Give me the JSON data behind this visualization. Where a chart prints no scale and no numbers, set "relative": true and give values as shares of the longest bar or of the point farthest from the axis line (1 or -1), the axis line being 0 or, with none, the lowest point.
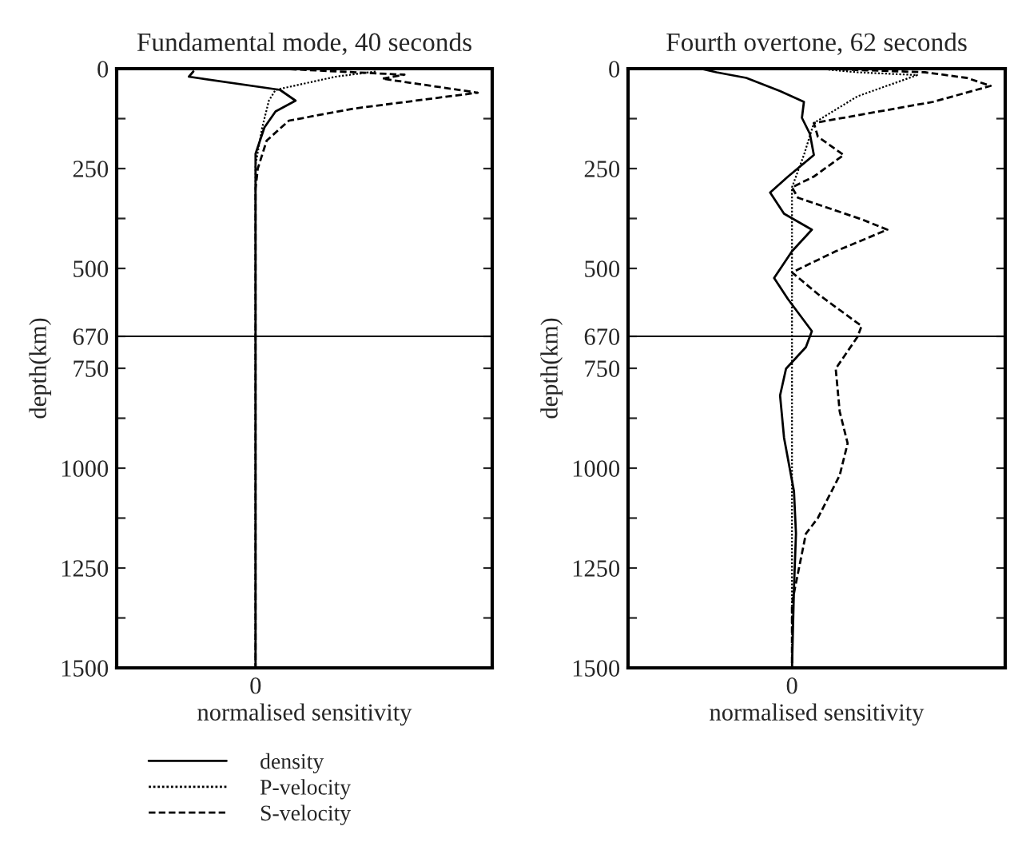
{
  "chart_data": [
    {
      "type": "line",
      "title": "Fundamental mode, 40 seconds",
      "xlabel": "normalised sensitivity",
      "ylabel": "depth(km)",
      "relative": true,
      "orientation": "horizontal",
      "annotations": [
        "0"
      ],
      "ylim": [
        1500,
        0
      ],
      "yticks": [
        0,
        {
          "value": 125,
          "label": null
        },
        250,
        {
          "value": 375,
          "label": null
        },
        500,
        670,
        750,
        {
          "value": 875,
          "label": null
        },
        1000,
        {
          "value": 1125,
          "label": null
        },
        1250,
        {
          "value": 1375,
          "label": null
        },
        1500
      ],
      "legend": "bottom left",
      "ref_lines": [
        {
          "axis": "y",
          "value": 670,
          "color": "#000000"
        }
      ],
      "series": [
        {
          "name": "density",
          "color": "#000000",
          "line_style": "solid",
          "values": [
            -0.28,
            -0.3,
            0.11,
            0.18,
            0.09,
            0.04,
            0.0,
            0.0
          ],
          "x": [
            7,
            20,
            53,
            80,
            107,
            147,
            213,
            1500
          ]
        },
        {
          "name": "P-velocity",
          "color": "#000000",
          "line_style": "dotted",
          "values": [
            0.54,
            0.36,
            0.09,
            0.06,
            0.03,
            0.0,
            0.0
          ],
          "x": [
            7,
            20,
            53,
            80,
            147,
            240,
            1500
          ]
        },
        {
          "name": "S-velocity",
          "color": "#000000",
          "line_style": "dashed",
          "values": [
            0.11,
            0.67,
            0.57,
            1.0,
            0.44,
            0.15,
            0.05,
            0.01,
            0.0,
            0.0
          ],
          "x": [
            0,
            15,
            25,
            60,
            100,
            130,
            180,
            250,
            300,
            1500
          ]
        }
      ]
    },
    {
      "type": "line",
      "title": "Fourth overtone, 62 seconds",
      "xlabel": "normalised sensitivity",
      "ylabel": "depth(km)",
      "relative": true,
      "orientation": "horizontal",
      "annotations": [
        "0"
      ],
      "ylim": [
        1500,
        0
      ],
      "yticks": [
        0,
        {
          "value": 125,
          "label": null
        },
        250,
        {
          "value": 375,
          "label": null
        },
        500,
        670,
        750,
        {
          "value": 875,
          "label": null
        },
        1000,
        {
          "value": 1125,
          "label": null
        },
        1250,
        {
          "value": 1375,
          "label": null
        },
        1500
      ],
      "ref_lines": [
        {
          "axis": "y",
          "value": 670,
          "color": "#000000"
        }
      ],
      "series": [
        {
          "color": "#000000",
          "line_style": "solid",
          "values": [
            -0.46,
            -0.38,
            -0.23,
            -0.06,
            0.06,
            0.05,
            0.09,
            0.11,
            -0.02,
            -0.11,
            -0.04,
            0.1,
            0.0,
            -0.09,
            -0.02,
            0.1,
            0.07,
            -0.03,
            -0.06,
            -0.04,
            0.01,
            0.02,
            0.01,
            0.0
          ],
          "x": [
            0,
            9,
            23,
            56,
            83,
            123,
            163,
            216,
            270,
            310,
            363,
            403,
            457,
            524,
            577,
            657,
            697,
            751,
            818,
            924,
            1058,
            1164,
            1300,
            1500
          ]
        },
        {
          "color": "#000000",
          "line_style": "dotted",
          "values": [
            0.13,
            0.33,
            0.63,
            0.33,
            0.11,
            0.06,
            0.0,
            0.0
          ],
          "x": [
            0,
            9,
            16,
            69,
            136,
            216,
            297,
            1500
          ]
        },
        {
          "color": "#000000",
          "line_style": "dashed",
          "values": [
            0.15,
            0.67,
            0.88,
            1.0,
            0.71,
            0.11,
            0.13,
            0.26,
            0.11,
            0.0,
            0.03,
            0.35,
            0.48,
            0.22,
            0.0,
            0.13,
            0.35,
            0.33,
            0.22,
            0.24,
            0.28,
            0.24,
            0.13,
            0.07,
            0.015,
            0.0,
            0.0
          ],
          "x": [
            0,
            9,
            23,
            43,
            83,
            136,
            170,
            216,
            270,
            297,
            323,
            377,
            403,
            457,
            510,
            564,
            644,
            671,
            751,
            858,
            938,
            1018,
            1125,
            1164,
            1300,
            1340,
            1500
          ]
        }
      ]
    }
  ]
}
